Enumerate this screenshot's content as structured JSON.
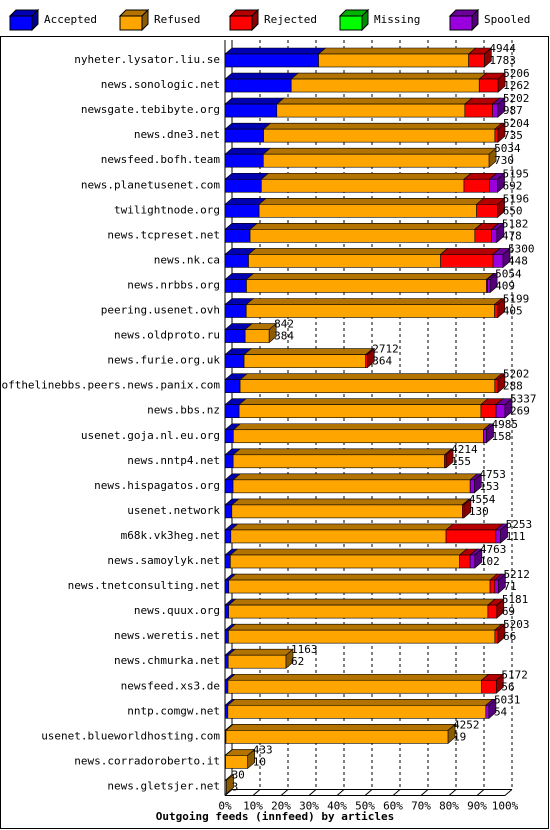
{
  "chart_data": {
    "type": "stacked-bar-3d-horizontal",
    "title": "Outgoing feeds (innfeed) by articles",
    "legend": "top",
    "categories": [
      "nyheter.lysator.liu.se",
      "news.sonologic.net",
      "newsgate.tebibyte.org",
      "news.dne3.net",
      "newsfeed.bofh.team",
      "news.planetusenet.com",
      "twilightnode.org",
      "news.tcpreset.net",
      "news.nk.ca",
      "news.nrbbs.org",
      "peering.usenet.ovh",
      "news.oldproto.ru",
      "news.furie.org.uk",
      "endofthelinebbs.peers.news.panix.com",
      "news.bbs.nz",
      "usenet.goja.nl.eu.org",
      "news.nntp4.net",
      "news.hispagatos.org",
      "usenet.network",
      "m68k.vk3heg.net",
      "news.samoylyk.net",
      "news.tnetconsulting.net",
      "news.quux.org",
      "news.weretis.net",
      "news.chmurka.net",
      "newsfeed.xs3.de",
      "nntp.comgw.net",
      "usenet.blueworldhosting.com",
      "news.corradoroberto.it",
      "news.gletsjer.net"
    ],
    "totals": [
      4944,
      5206,
      5202,
      5204,
      5034,
      5195,
      5196,
      5182,
      5300,
      5054,
      5199,
      842,
      2712,
      5202,
      5337,
      4985,
      4214,
      4753,
      4554,
      5253,
      4763,
      5212,
      5181,
      5203,
      1163,
      5172,
      5031,
      4252,
      433,
      30
    ],
    "series": [
      {
        "name": "Accepted",
        "color": "#0000ff",
        "values": [
          1783,
          1262,
          987,
          735,
          730,
          692,
          650,
          478,
          448,
          409,
          405,
          384,
          364,
          288,
          269,
          158,
          155,
          153,
          130,
          111,
          102,
          71,
          69,
          66,
          62,
          56,
          54,
          19,
          10,
          3
        ]
      },
      {
        "name": "Refused",
        "color": "#ffa500",
        "values": [
          2861,
          3584,
          3585,
          4409,
          4304,
          3863,
          4146,
          4284,
          3662,
          4575,
          4734,
          458,
          2318,
          4854,
          4608,
          4767,
          4029,
          4520,
          4394,
          4102,
          4371,
          4981,
          4942,
          5077,
          1101,
          4836,
          4917,
          4233,
          423,
          27
        ]
      },
      {
        "name": "Rejected",
        "color": "#ff0000",
        "values": [
          300,
          360,
          530,
          60,
          0,
          490,
          400,
          320,
          1000,
          20,
          60,
          0,
          30,
          60,
          290,
          0,
          30,
          0,
          30,
          950,
          200,
          90,
          170,
          60,
          0,
          280,
          0,
          0,
          0,
          0
        ]
      },
      {
        "name": "Missing",
        "color": "#00ff00",
        "values": [
          0,
          0,
          0,
          0,
          0,
          0,
          0,
          0,
          0,
          0,
          0,
          0,
          0,
          0,
          0,
          0,
          0,
          0,
          0,
          0,
          0,
          0,
          0,
          0,
          0,
          0,
          0,
          0,
          0,
          0
        ]
      },
      {
        "name": "Spooled",
        "color": "#9900dd",
        "values": [
          0,
          0,
          100,
          0,
          0,
          150,
          0,
          100,
          190,
          50,
          0,
          0,
          0,
          0,
          170,
          60,
          0,
          80,
          0,
          90,
          90,
          70,
          0,
          0,
          0,
          0,
          60,
          0,
          0,
          0
        ]
      }
    ],
    "xlim": [
      0,
      5337
    ],
    "xticks": [
      {
        "value": 0,
        "label": "0%"
      },
      {
        "value": 533.7,
        "label": "10%"
      },
      {
        "value": 1067.4,
        "label": "20%"
      },
      {
        "value": 1601.1,
        "label": "30%"
      },
      {
        "value": 2134.8,
        "label": "40%"
      },
      {
        "value": 2668.5,
        "label": "50%"
      },
      {
        "value": 3202.2,
        "label": "60%"
      },
      {
        "value": 3735.9,
        "label": "70%"
      },
      {
        "value": 4269.6,
        "label": "80%"
      },
      {
        "value": 4803.3,
        "label": "90%"
      },
      {
        "value": 5337,
        "label": "100%"
      }
    ],
    "grid": true
  }
}
